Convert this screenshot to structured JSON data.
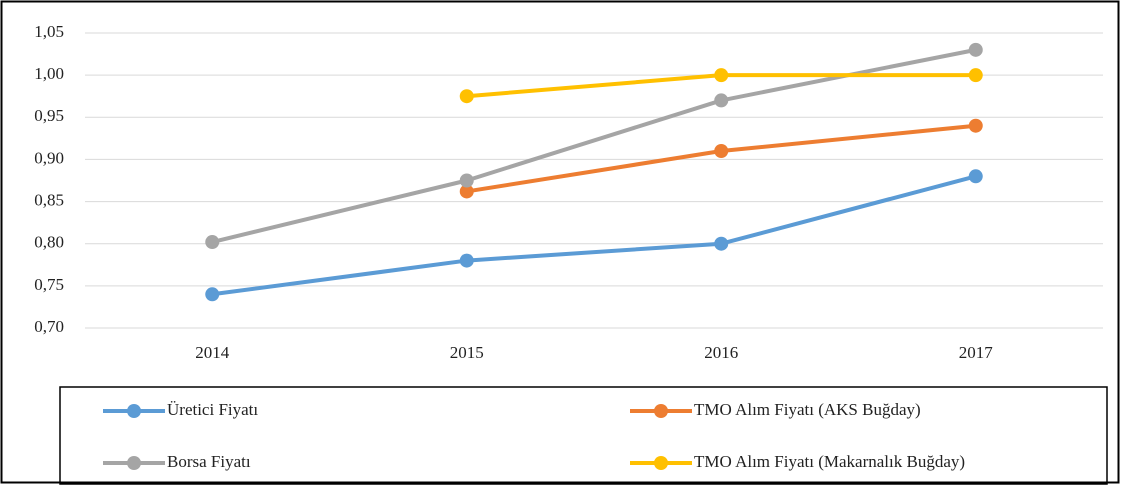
{
  "chart_data": {
    "type": "line",
    "categories": [
      "2014",
      "2015",
      "2016",
      "2017"
    ],
    "series": [
      {
        "name": "Üretici Fiyatı",
        "color": "#5b9bd5",
        "values": [
          0.74,
          0.78,
          0.8,
          0.88
        ]
      },
      {
        "name": "TMO Alım Fiyatı (AKS Buğday)",
        "color": "#ed7d31",
        "values": [
          null,
          0.862,
          0.91,
          0.94
        ]
      },
      {
        "name": "Borsa Fiyatı",
        "color": "#a5a5a5",
        "values": [
          0.802,
          0.875,
          0.97,
          1.03
        ]
      },
      {
        "name": "TMO Alım Fiyatı (Makarnalık Buğday)",
        "color": "#ffc000",
        "values": [
          null,
          0.975,
          1.0,
          1.0
        ]
      }
    ],
    "ylim": [
      0.7,
      1.05
    ],
    "yticks": [
      {
        "value": 0.7,
        "label": "0,70"
      },
      {
        "value": 0.75,
        "label": "0,75"
      },
      {
        "value": 0.8,
        "label": "0,80"
      },
      {
        "value": 0.85,
        "label": "0,85"
      },
      {
        "value": 0.9,
        "label": "0,90"
      },
      {
        "value": 0.95,
        "label": "0,95"
      },
      {
        "value": 1.0,
        "label": "1,00"
      },
      {
        "value": 1.05,
        "label": "1,05"
      }
    ],
    "grid": true,
    "legend": "bottom"
  }
}
